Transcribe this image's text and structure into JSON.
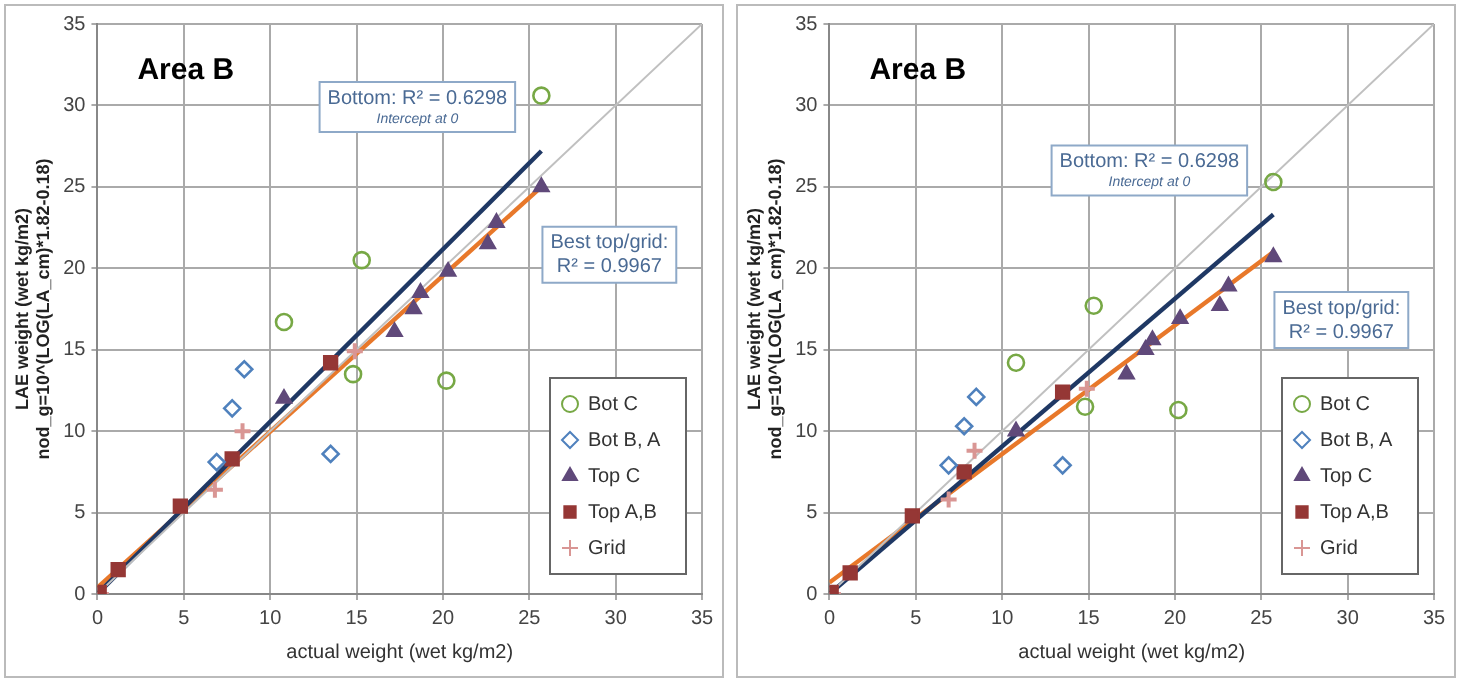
{
  "chart_data": [
    {
      "type": "scatter",
      "title": "Area B",
      "xlabel": "actual weight (wet kg/m2)",
      "ylabel": "LAE weight (wet kg/m2)\nnod_g=10^(LOG(LA_cm)*1.82-0.18)",
      "xlim": [
        0,
        35
      ],
      "ylim": [
        0,
        35
      ],
      "xticks": [
        0,
        5,
        10,
        15,
        20,
        25,
        30,
        35
      ],
      "yticks": [
        0,
        5,
        10,
        15,
        20,
        25,
        30,
        35
      ],
      "grid": true,
      "legend": "bottom right",
      "annotations": [
        "Bottom: R² = 0.6298\nIntercept at 0",
        "Best top/grid:\nR² = 0.9967"
      ],
      "series": [
        {
          "type": "line",
          "color": "#c0c0c0",
          "x": [
            0,
            35
          ],
          "values": [
            0,
            35
          ],
          "marker": "none"
        },
        {
          "type": "line",
          "color": "#1f3864",
          "x": [
            0,
            25.7
          ],
          "values": [
            0,
            27.2
          ],
          "marker": "none"
        },
        {
          "type": "line",
          "color": "#e8782a",
          "x": [
            0,
            25.7
          ],
          "values": [
            0.4,
            25.0
          ],
          "marker": "none"
        },
        {
          "name": "Bot C",
          "color": "#77a845",
          "marker": "circle",
          "x": [
            10.8,
            15.3,
            14.8,
            20.2,
            25.7
          ],
          "values": [
            16.7,
            20.5,
            13.5,
            13.1,
            30.6
          ]
        },
        {
          "name": "Bot B, A",
          "color": "#4f81bd",
          "marker": "diamond",
          "x": [
            6.9,
            7.8,
            8.5,
            13.5
          ],
          "values": [
            8.1,
            11.4,
            13.8,
            8.6
          ]
        },
        {
          "name": "Top C",
          "color": "#60497a",
          "marker": "triangle",
          "x": [
            10.8,
            17.2,
            18.3,
            18.7,
            20.3,
            22.6,
            23.1,
            25.7
          ],
          "values": [
            12.0,
            16.1,
            17.5,
            18.5,
            19.8,
            21.5,
            22.8,
            25.0
          ]
        },
        {
          "name": "Top A,B",
          "color": "#953735",
          "marker": "square",
          "x": [
            0.1,
            1.2,
            4.8,
            7.8,
            13.5
          ],
          "values": [
            0.1,
            1.5,
            5.4,
            8.3,
            14.2
          ]
        },
        {
          "name": "Grid",
          "color": "#d99694",
          "marker": "cross",
          "x": [
            0.2,
            6.8,
            8.4,
            14.9
          ],
          "values": [
            0.0,
            6.4,
            10.0,
            14.9
          ]
        }
      ]
    },
    {
      "type": "scatter",
      "title": "Area B",
      "xlabel": "actual weight (wet kg/m2)",
      "ylabel": "LAE weight (wet kg/m2)\nnod_g=10^(LOG(LA_cm)*1.82-0.18)",
      "xlim": [
        0,
        35
      ],
      "ylim": [
        0,
        35
      ],
      "xticks": [
        0,
        5,
        10,
        15,
        20,
        25,
        30,
        35
      ],
      "yticks": [
        0,
        5,
        10,
        15,
        20,
        25,
        30,
        35
      ],
      "grid": true,
      "legend": "bottom right",
      "annotations": [
        "Bottom: R² = 0.6298\nIntercept at 0",
        "Best top/grid:\nR² = 0.9967"
      ],
      "series": [
        {
          "type": "line",
          "color": "#c0c0c0",
          "x": [
            0,
            35
          ],
          "values": [
            0,
            35
          ],
          "marker": "none"
        },
        {
          "type": "line",
          "color": "#1f3864",
          "x": [
            0,
            25.7
          ],
          "values": [
            0,
            23.3
          ],
          "marker": "none"
        },
        {
          "type": "line",
          "color": "#e8782a",
          "x": [
            0,
            25.7
          ],
          "values": [
            0.7,
            21.0
          ],
          "marker": "none"
        },
        {
          "name": "Bot C",
          "color": "#77a845",
          "marker": "circle",
          "x": [
            10.8,
            15.3,
            14.8,
            20.2,
            25.7
          ],
          "values": [
            14.2,
            17.7,
            11.5,
            11.3,
            25.3
          ]
        },
        {
          "name": "Bot B, A",
          "color": "#4f81bd",
          "marker": "diamond",
          "x": [
            6.9,
            7.8,
            8.5,
            13.5
          ],
          "values": [
            7.9,
            10.3,
            12.1,
            7.9
          ]
        },
        {
          "name": "Top C",
          "color": "#60497a",
          "marker": "triangle",
          "x": [
            10.8,
            17.2,
            18.3,
            18.7,
            20.3,
            22.6,
            23.1,
            25.7
          ],
          "values": [
            10.0,
            13.5,
            15.0,
            15.6,
            16.9,
            17.7,
            18.9,
            20.7
          ]
        },
        {
          "name": "Top A,B",
          "color": "#953735",
          "marker": "square",
          "x": [
            0.1,
            1.2,
            4.8,
            7.8,
            13.5
          ],
          "values": [
            0.1,
            1.3,
            4.8,
            7.5,
            12.4
          ]
        },
        {
          "name": "Grid",
          "color": "#d99694",
          "marker": "cross",
          "x": [
            0.2,
            6.9,
            8.4,
            14.9
          ],
          "values": [
            0.0,
            5.8,
            8.8,
            12.6
          ]
        }
      ]
    }
  ]
}
